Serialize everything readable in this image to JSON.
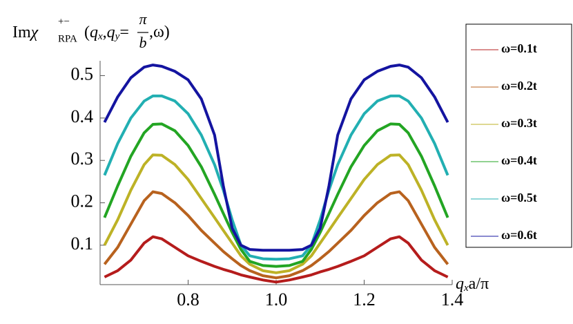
{
  "chart_data": {
    "type": "line",
    "ylabel": [
      "Im",
      "χ",
      "+−",
      "RPA",
      "(",
      "q",
      "x",
      ",",
      "q",
      "y",
      "=",
      "π",
      "b",
      ",ω)"
    ],
    "xlabel": [
      "q",
      "x",
      "a/π"
    ],
    "x": [
      0.61,
      0.64,
      0.67,
      0.7,
      0.72,
      0.74,
      0.77,
      0.8,
      0.83,
      0.86,
      0.88,
      0.9,
      0.92,
      0.94,
      0.97,
      1.0,
      1.03,
      1.06,
      1.08,
      1.1,
      1.12,
      1.14,
      1.17,
      1.2,
      1.23,
      1.26,
      1.28,
      1.3,
      1.33,
      1.36,
      1.39
    ],
    "xlim": [
      0.6,
      1.4
    ],
    "ylim": [
      0.007,
      0.535
    ],
    "xticks": [
      0.8,
      {
        "value": 1.0,
        "label": "1.0"
      },
      1.2,
      1.4
    ],
    "yticks": [
      0.1,
      0.2,
      0.3,
      0.4,
      0.5
    ],
    "legend": "right",
    "series": [
      {
        "name": "ω=0.1t",
        "color": "#b51c1c",
        "values": [
          0.025,
          0.04,
          0.065,
          0.105,
          0.12,
          0.115,
          0.095,
          0.075,
          0.062,
          0.05,
          0.043,
          0.037,
          0.03,
          0.025,
          0.018,
          0.013,
          0.018,
          0.025,
          0.03,
          0.037,
          0.043,
          0.05,
          0.062,
          0.075,
          0.095,
          0.115,
          0.12,
          0.105,
          0.065,
          0.04,
          0.025
        ]
      },
      {
        "name": "ω=0.2t",
        "color": "#b8621e",
        "values": [
          0.055,
          0.095,
          0.15,
          0.205,
          0.226,
          0.222,
          0.2,
          0.17,
          0.135,
          0.105,
          0.085,
          0.068,
          0.052,
          0.04,
          0.028,
          0.023,
          0.028,
          0.04,
          0.052,
          0.068,
          0.085,
          0.105,
          0.135,
          0.17,
          0.2,
          0.222,
          0.226,
          0.205,
          0.15,
          0.095,
          0.055
        ]
      },
      {
        "name": "ω=0.3t",
        "color": "#bdb226",
        "values": [
          0.1,
          0.16,
          0.23,
          0.29,
          0.313,
          0.312,
          0.29,
          0.255,
          0.21,
          0.165,
          0.135,
          0.105,
          0.075,
          0.055,
          0.04,
          0.035,
          0.04,
          0.055,
          0.075,
          0.105,
          0.135,
          0.165,
          0.21,
          0.255,
          0.29,
          0.312,
          0.313,
          0.29,
          0.23,
          0.16,
          0.1
        ]
      },
      {
        "name": "ω=0.4t",
        "color": "#23a523",
        "values": [
          0.165,
          0.24,
          0.31,
          0.365,
          0.385,
          0.386,
          0.37,
          0.335,
          0.285,
          0.22,
          0.175,
          0.13,
          0.09,
          0.062,
          0.052,
          0.05,
          0.052,
          0.062,
          0.09,
          0.13,
          0.175,
          0.22,
          0.285,
          0.335,
          0.37,
          0.386,
          0.385,
          0.365,
          0.31,
          0.24,
          0.165
        ]
      },
      {
        "name": "ω=0.5t",
        "color": "#22afb2",
        "values": [
          0.265,
          0.34,
          0.4,
          0.44,
          0.452,
          0.452,
          0.44,
          0.41,
          0.36,
          0.29,
          0.23,
          0.16,
          0.1,
          0.075,
          0.068,
          0.067,
          0.068,
          0.075,
          0.1,
          0.16,
          0.23,
          0.29,
          0.36,
          0.41,
          0.44,
          0.452,
          0.452,
          0.44,
          0.4,
          0.34,
          0.265
        ]
      },
      {
        "name": "ω=0.6t",
        "color": "#1414a0",
        "values": [
          0.39,
          0.45,
          0.495,
          0.52,
          0.525,
          0.522,
          0.51,
          0.49,
          0.445,
          0.36,
          0.24,
          0.14,
          0.1,
          0.09,
          0.088,
          0.088,
          0.088,
          0.09,
          0.1,
          0.14,
          0.24,
          0.36,
          0.445,
          0.49,
          0.51,
          0.522,
          0.525,
          0.52,
          0.495,
          0.45,
          0.39
        ]
      }
    ]
  }
}
